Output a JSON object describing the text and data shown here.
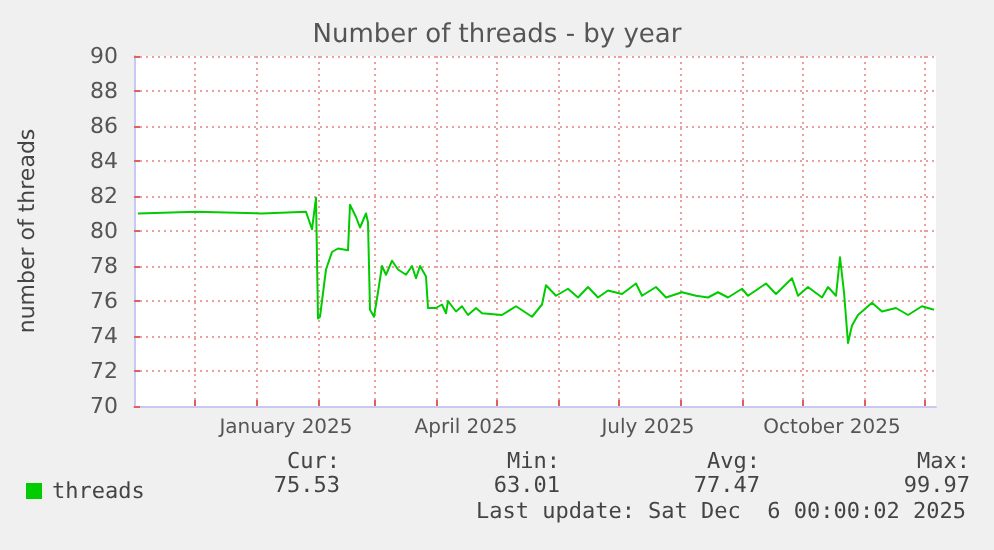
{
  "chart_data": {
    "type": "line",
    "title": "Number of threads - by year",
    "ylabel": "number of threads",
    "x": [
      "2024-11-03",
      "2024-12-02",
      "2025-01-04",
      "2025-01-26",
      "2025-01-29",
      "2025-01-31",
      "2025-02-01",
      "2025-02-02",
      "2025-02-05",
      "2025-02-08",
      "2025-02-11",
      "2025-02-16",
      "2025-02-17",
      "2025-02-20",
      "2025-02-22",
      "2025-02-25",
      "2025-02-26",
      "2025-02-27",
      "2025-03-01",
      "2025-03-03",
      "2025-03-05",
      "2025-03-07",
      "2025-03-10",
      "2025-03-13",
      "2025-03-17",
      "2025-03-20",
      "2025-03-22",
      "2025-03-24",
      "2025-03-27",
      "2025-03-28",
      "2025-04-01",
      "2025-04-04",
      "2025-04-06",
      "2025-04-07",
      "2025-04-11",
      "2025-04-14",
      "2025-04-17",
      "2025-04-21",
      "2025-04-24",
      "2025-05-04",
      "2025-05-11",
      "2025-05-19",
      "2025-05-24",
      "2025-05-26",
      "2025-05-31",
      "2025-06-06",
      "2025-06-11",
      "2025-06-16",
      "2025-06-21",
      "2025-06-26",
      "2025-07-03",
      "2025-07-10",
      "2025-07-13",
      "2025-07-20",
      "2025-07-25",
      "2025-08-02",
      "2025-08-09",
      "2025-08-15",
      "2025-08-20",
      "2025-08-25",
      "2025-09-01",
      "2025-09-04",
      "2025-09-13",
      "2025-09-18",
      "2025-09-26",
      "2025-09-29",
      "2025-10-04",
      "2025-10-11",
      "2025-10-14",
      "2025-10-18",
      "2025-10-20",
      "2025-10-22",
      "2025-10-24",
      "2025-10-26",
      "2025-10-29",
      "2025-11-05",
      "2025-11-10",
      "2025-11-17",
      "2025-11-23",
      "2025-11-30",
      "2025-12-06"
    ],
    "series": [
      {
        "name": "threads",
        "color": "#00cc00",
        "values": [
          81.0,
          81.1,
          81.0,
          81.1,
          80.1,
          81.9,
          75.0,
          75.1,
          77.8,
          78.8,
          79.0,
          78.9,
          81.5,
          80.8,
          80.2,
          81.0,
          80.5,
          75.5,
          75.1,
          76.5,
          78.0,
          77.5,
          78.3,
          77.8,
          77.5,
          78.0,
          77.3,
          78.0,
          77.4,
          75.6,
          75.6,
          75.8,
          75.3,
          76.0,
          75.4,
          75.7,
          75.2,
          75.6,
          75.3,
          75.2,
          75.7,
          75.1,
          75.8,
          76.9,
          76.3,
          76.7,
          76.2,
          76.8,
          76.2,
          76.6,
          76.4,
          77.0,
          76.3,
          76.8,
          76.2,
          76.5,
          76.3,
          76.2,
          76.5,
          76.2,
          76.7,
          76.3,
          77.0,
          76.4,
          77.3,
          76.3,
          76.8,
          76.2,
          76.8,
          76.3,
          78.5,
          76.5,
          73.6,
          74.6,
          75.2,
          75.9,
          75.4,
          75.6,
          75.2,
          75.7,
          75.5
        ]
      }
    ],
    "xlim": [
      "2024-11-01",
      "2025-12-07"
    ],
    "xticks": [
      {
        "value": "2024-12-01",
        "label": null
      },
      {
        "value": "2025-01-01",
        "label": null
      },
      {
        "value": "2025-01-16",
        "label": "January 2025"
      },
      {
        "value": "2025-02-01",
        "label": null
      },
      {
        "value": "2025-03-01",
        "label": null
      },
      {
        "value": "2025-04-01",
        "label": null
      },
      {
        "value": "2025-04-16",
        "label": "April 2025"
      },
      {
        "value": "2025-05-01",
        "label": null
      },
      {
        "value": "2025-06-01",
        "label": null
      },
      {
        "value": "2025-07-01",
        "label": null
      },
      {
        "value": "2025-07-16",
        "label": "July 2025"
      },
      {
        "value": "2025-08-01",
        "label": null
      },
      {
        "value": "2025-09-01",
        "label": null
      },
      {
        "value": "2025-10-01",
        "label": null
      },
      {
        "value": "2025-10-16",
        "label": "October 2025"
      },
      {
        "value": "2025-11-01",
        "label": null
      },
      {
        "value": "2025-12-01",
        "label": null
      }
    ],
    "ylim": [
      70,
      90
    ],
    "yticks": [
      70,
      72,
      74,
      76,
      78,
      80,
      82,
      84,
      86,
      88,
      90
    ],
    "grid": true,
    "legend": "bottom left",
    "marker": "none",
    "line_style": "solid",
    "annotations": [
      "Cur:",
      "75.53",
      "Min:",
      "63.01",
      "Avg:",
      "77.47",
      "Max:",
      "99.97",
      "Last update: Sat Dec  6 00:00:02 2025"
    ]
  }
}
